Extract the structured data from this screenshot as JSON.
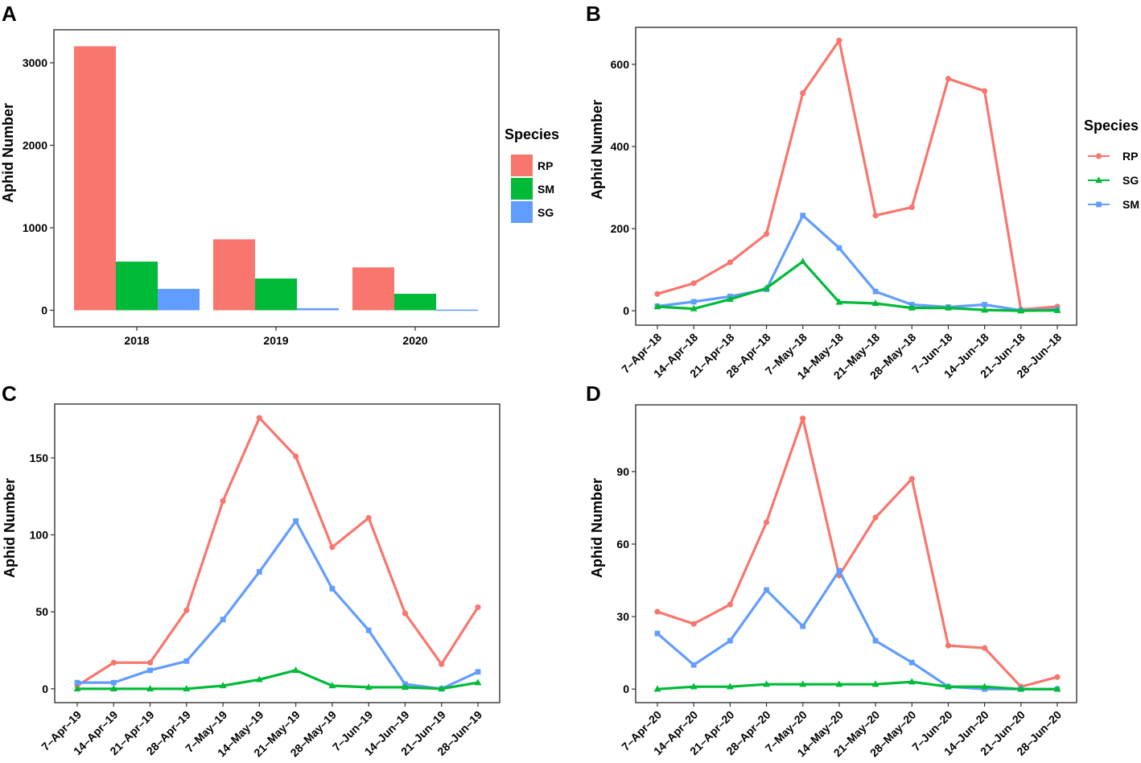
{
  "colors": {
    "RP": "#F8766D",
    "SM": "#00BA38",
    "SG": "#619CFF",
    "SG_line": "#00BA38",
    "SM_line": "#619CFF"
  },
  "chart_data": [
    {
      "panel": "A",
      "type": "bar",
      "ylabel": "Aphid Number",
      "xlabel": "",
      "categories": [
        "2018",
        "2019",
        "2020"
      ],
      "ylim": [
        -200,
        3400
      ],
      "yticks": [
        0,
        1000,
        2000,
        3000
      ],
      "series": [
        {
          "name": "RP",
          "values": [
            3200,
            860,
            520
          ]
        },
        {
          "name": "SM",
          "values": [
            590,
            385,
            200
          ]
        },
        {
          "name": "SG",
          "values": [
            260,
            25,
            8
          ]
        }
      ],
      "legend_title": "Species",
      "legend": [
        "RP",
        "SM",
        "SG"
      ]
    },
    {
      "panel": "B",
      "type": "line",
      "ylabel": "Aphid Number",
      "categories": [
        "7–Apr–18",
        "14–Apr–18",
        "21–Apr–18",
        "28–Apr–18",
        "7–May–18",
        "14–May–18",
        "21–May–18",
        "28–May–18",
        "7–Jun–18",
        "14–Jun–18",
        "21–Jun–18",
        "28–Jun–18"
      ],
      "ylim": [
        -35,
        690
      ],
      "yticks": [
        0,
        200,
        400,
        600
      ],
      "series": [
        {
          "name": "RP",
          "values": [
            41,
            67,
            118,
            187,
            530,
            658,
            232,
            252,
            565,
            535,
            3,
            10
          ]
        },
        {
          "name": "SG",
          "values": [
            10,
            5,
            28,
            55,
            120,
            21,
            18,
            7,
            7,
            2,
            0,
            1
          ]
        },
        {
          "name": "SM",
          "values": [
            11,
            22,
            35,
            52,
            232,
            153,
            47,
            15,
            9,
            15,
            1,
            3
          ]
        }
      ],
      "legend_title": "Species",
      "legend": [
        "RP",
        "SG",
        "SM"
      ]
    },
    {
      "panel": "C",
      "type": "line",
      "ylabel": "Aphid Number",
      "categories": [
        "7–Apr–19",
        "14–Apr–19",
        "21–Apr–19",
        "28–Apr–19",
        "7–May–19",
        "14–May–19",
        "21–May–19",
        "28–May–19",
        "7–Jun–19",
        "14–Jun–19",
        "21–Jun–19",
        "28–Jun–19"
      ],
      "ylim": [
        -9,
        185
      ],
      "yticks": [
        0,
        50,
        100,
        150
      ],
      "series": [
        {
          "name": "RP",
          "values": [
            2,
            17,
            17,
            51,
            122,
            176,
            151,
            92,
            111,
            49,
            16,
            53
          ]
        },
        {
          "name": "SG",
          "values": [
            0,
            0,
            0,
            0,
            2,
            6,
            12,
            2,
            1,
            1,
            0,
            4
          ]
        },
        {
          "name": "SM",
          "values": [
            4,
            4,
            12,
            18,
            45,
            76,
            109,
            65,
            38,
            3,
            0,
            11
          ]
        }
      ]
    },
    {
      "panel": "D",
      "type": "line",
      "ylabel": "Aphid Number",
      "categories": [
        "7–Apr–20",
        "14–Apr–20",
        "21–Apr–20",
        "28–Apr–20",
        "7–May–20",
        "14–May–20",
        "21–May–20",
        "28–May–20",
        "7–Jun–20",
        "14–Jun–20",
        "21–Jun–20",
        "28–Jun–20"
      ],
      "ylim": [
        -5.6,
        117.6
      ],
      "yticks": [
        0,
        30,
        60,
        90
      ],
      "series": [
        {
          "name": "RP",
          "values": [
            32,
            27,
            35,
            69,
            112,
            47,
            71,
            87,
            18,
            17,
            1,
            5
          ]
        },
        {
          "name": "SG",
          "values": [
            0,
            1,
            1,
            2,
            2,
            2,
            2,
            3,
            1,
            1,
            0,
            0
          ]
        },
        {
          "name": "SM",
          "values": [
            23,
            10,
            20,
            41,
            26,
            49,
            20,
            11,
            1,
            0,
            0,
            0
          ]
        }
      ]
    }
  ]
}
